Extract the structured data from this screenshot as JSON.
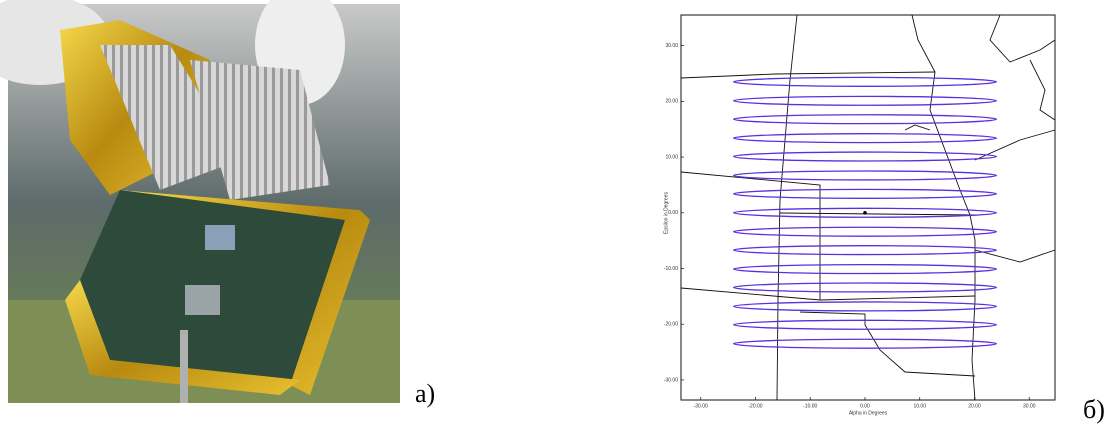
{
  "figure": {
    "panels": [
      {
        "label": "а)"
      },
      {
        "label": "б)"
      }
    ]
  },
  "chart_data": {
    "type": "scan",
    "x_label": "Alpha in Degrees",
    "y_label": "Epsilon in Degrees",
    "xlim": [
      -33.6,
      34.7
    ],
    "ylim": [
      -33.6,
      35.5
    ],
    "xticks": [
      {
        "value": -30,
        "label": "-30.00"
      },
      {
        "value": -20,
        "label": "-20.00"
      },
      {
        "value": -10,
        "label": "-10.00"
      },
      {
        "value": 0,
        "label": "0.00"
      },
      {
        "value": 10,
        "label": "10.00"
      },
      {
        "value": 20,
        "label": "20.00"
      },
      {
        "value": 30,
        "label": "30.00"
      }
    ],
    "yticks": [
      {
        "value": -30,
        "label": "-30.00"
      },
      {
        "value": -20,
        "label": "-20.00"
      },
      {
        "value": -10,
        "label": "-10.00"
      },
      {
        "value": 0,
        "label": "0.00"
      },
      {
        "value": 10,
        "label": "10.00"
      },
      {
        "value": 20,
        "label": "20.00"
      },
      {
        "value": 30,
        "label": "30.00"
      }
    ],
    "series": [
      {
        "color": "#5a2fe0",
        "values": [
          23.5,
          20.1,
          16.8,
          13.4,
          10.1,
          6.7,
          3.4,
          0,
          -3.4,
          -6.7,
          -10.1,
          -13.4,
          -16.8,
          -20.1,
          -23.5
        ]
      }
    ],
    "ellipse_half_width": 24,
    "ellipse_half_height": 0.8,
    "point": {
      "x": 0,
      "y": 0
    }
  }
}
